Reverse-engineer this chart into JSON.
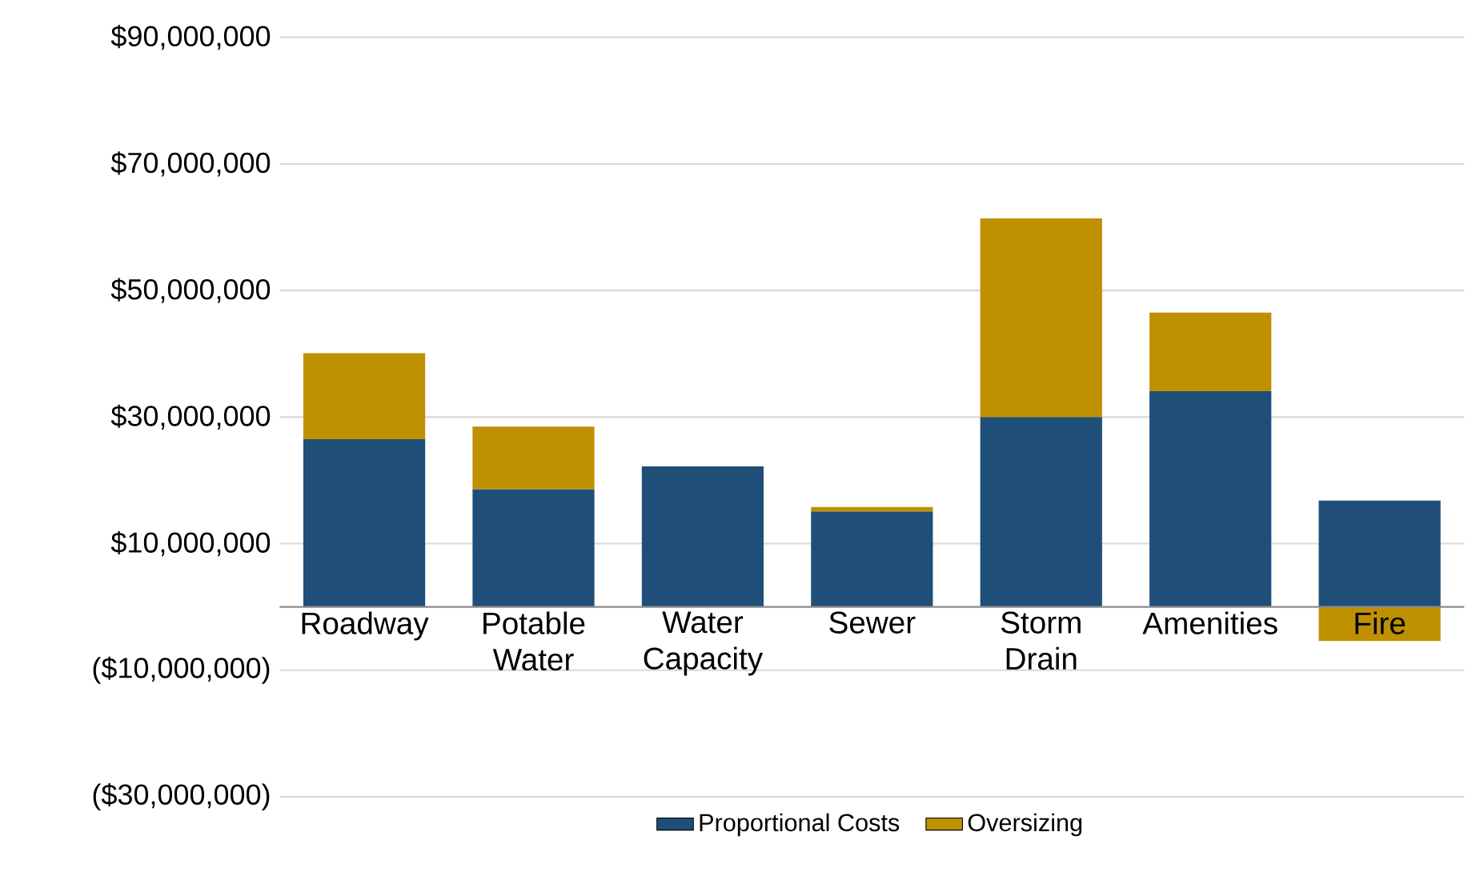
{
  "chart_data": {
    "type": "bar",
    "stacked": true,
    "categories": [
      "Roadway",
      "Potable Water",
      "Water Capacity",
      "Sewer",
      "Storm Drain",
      "Amenities",
      "Fire"
    ],
    "series": [
      {
        "name": "Proportional Costs",
        "color": "#1f4e79",
        "values": [
          26500000,
          18600000,
          22200000,
          15100000,
          30000000,
          34100000,
          16800000
        ]
      },
      {
        "name": "Oversizing",
        "color": "#bf9000",
        "values": [
          13600000,
          9900000,
          0,
          700000,
          31400000,
          12400000,
          -5400000
        ]
      }
    ],
    "ylim": [
      -30000000,
      90000000
    ],
    "yticks": [
      {
        "value": -30000000,
        "label": "($30,000,000)"
      },
      {
        "value": -10000000,
        "label": "($10,000,000)"
      },
      {
        "value": 10000000,
        "label": "$10,000,000"
      },
      {
        "value": 30000000,
        "label": "$30,000,000"
      },
      {
        "value": 50000000,
        "label": "$50,000,000"
      },
      {
        "value": 70000000,
        "label": "$70,000,000"
      },
      {
        "value": 90000000,
        "label": "$90,000,000"
      }
    ],
    "grid": "y",
    "legend": "bottom"
  }
}
